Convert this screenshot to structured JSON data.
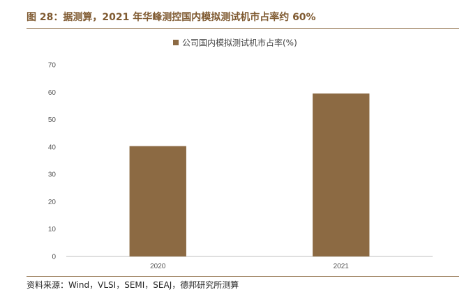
{
  "header": {
    "figure_title": "图 28：据测算，2021 年华峰测控国内模拟测试机市占率约 60%"
  },
  "footer": {
    "source": "资料来源：Wind，VLSI，SEMI，SEAJ，德邦研究所测算"
  },
  "colors": {
    "accent": "#7f5a31",
    "bar": "#8c6a43",
    "rule": "#8c6a43"
  },
  "chart_data": {
    "type": "bar",
    "categories": [
      "2020",
      "2021"
    ],
    "series": [
      {
        "name": "公司国内模拟测试机市占率(%)",
        "values": [
          40.3,
          59.5
        ]
      }
    ],
    "ylim": [
      0,
      70
    ],
    "yticks": [
      0,
      10,
      20,
      30,
      40,
      50,
      60,
      70
    ],
    "legend": "top-center",
    "grid": false
  }
}
